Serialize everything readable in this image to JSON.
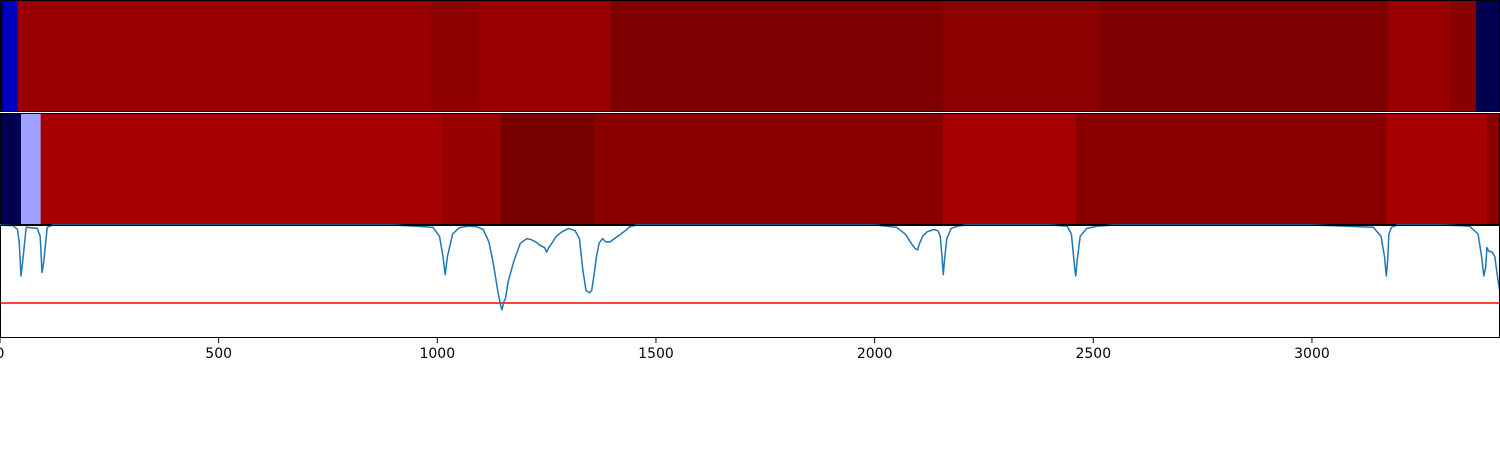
{
  "chart_data": [
    {
      "type": "heatmap",
      "segments": [
        {
          "x0": 0,
          "x1": 8,
          "color": "#00007a"
        },
        {
          "x0": 8,
          "x1": 40,
          "color": "#0000bf"
        },
        {
          "x0": 40,
          "x1": 985,
          "color": "#9a0000"
        },
        {
          "x0": 985,
          "x1": 1095,
          "color": "#8e0000"
        },
        {
          "x0": 1095,
          "x1": 1395,
          "color": "#9a0000"
        },
        {
          "x0": 1395,
          "x1": 2155,
          "color": "#7e0000"
        },
        {
          "x0": 2155,
          "x1": 2515,
          "color": "#8c0000"
        },
        {
          "x0": 2515,
          "x1": 3175,
          "color": "#7e0000"
        },
        {
          "x0": 3175,
          "x1": 3315,
          "color": "#9a0000"
        },
        {
          "x0": 3315,
          "x1": 3375,
          "color": "#880000"
        },
        {
          "x0": 3375,
          "x1": 3430,
          "color": "#00004e"
        }
      ]
    },
    {
      "type": "heatmap",
      "segments": [
        {
          "x0": 0,
          "x1": 48,
          "color": "#00004e"
        },
        {
          "x0": 48,
          "x1": 93,
          "color": "#a0a0ff"
        },
        {
          "x0": 93,
          "x1": 1010,
          "color": "#a60000"
        },
        {
          "x0": 1010,
          "x1": 1145,
          "color": "#980000"
        },
        {
          "x0": 1145,
          "x1": 1360,
          "color": "#7a0000"
        },
        {
          "x0": 1360,
          "x1": 2155,
          "color": "#8a0000"
        },
        {
          "x0": 2155,
          "x1": 2460,
          "color": "#a60000"
        },
        {
          "x0": 2460,
          "x1": 3170,
          "color": "#8a0000"
        },
        {
          "x0": 3170,
          "x1": 3400,
          "color": "#a60000"
        },
        {
          "x0": 3400,
          "x1": 3430,
          "color": "#8a0000"
        }
      ]
    },
    {
      "type": "line",
      "series": [
        {
          "color": "#1f77b4",
          "baseline": 1.0,
          "x": [
            0,
            30,
            40,
            44,
            48,
            52,
            60,
            85,
            92,
            96,
            100,
            108,
            120,
            160,
            300,
            600,
            900,
            990,
            1005,
            1013,
            1018,
            1023,
            1035,
            1050,
            1070,
            1090,
            1105,
            1118,
            1128,
            1138,
            1144,
            1148,
            1152,
            1156,
            1162,
            1175,
            1190,
            1205,
            1215,
            1225,
            1235,
            1245,
            1250,
            1255,
            1262,
            1272,
            1285,
            1300,
            1315,
            1325,
            1333,
            1340,
            1348,
            1353,
            1358,
            1364,
            1370,
            1378,
            1385,
            1395,
            1405,
            1420,
            1430,
            1438,
            1445,
            1455,
            1470,
            1490,
            1600,
            1800,
            2000,
            2050,
            2070,
            2085,
            2093,
            2098,
            2103,
            2110,
            2120,
            2135,
            2145,
            2150,
            2154,
            2157,
            2160,
            2165,
            2175,
            2190,
            2210,
            2250,
            2400,
            2440,
            2450,
            2455,
            2458,
            2460,
            2463,
            2470,
            2485,
            2510,
            2550,
            2700,
            3000,
            3140,
            3158,
            3166,
            3170,
            3173,
            3176,
            3182,
            3195,
            3220,
            3300,
            3360,
            3380,
            3388,
            3393,
            3397,
            3400,
            3404,
            3412,
            3418,
            3424,
            3430
          ],
          "y": [
            1.0,
            0.995,
            0.96,
            0.85,
            0.55,
            0.68,
            0.98,
            0.97,
            0.9,
            0.58,
            0.67,
            0.98,
            1.0,
            1.0,
            1.0,
            1.0,
            1.0,
            0.98,
            0.9,
            0.72,
            0.56,
            0.72,
            0.92,
            0.975,
            0.99,
            0.985,
            0.96,
            0.85,
            0.66,
            0.42,
            0.3,
            0.25,
            0.32,
            0.35,
            0.5,
            0.68,
            0.84,
            0.88,
            0.87,
            0.85,
            0.82,
            0.8,
            0.76,
            0.8,
            0.84,
            0.9,
            0.94,
            0.97,
            0.95,
            0.88,
            0.6,
            0.42,
            0.4,
            0.42,
            0.55,
            0.72,
            0.84,
            0.88,
            0.85,
            0.85,
            0.88,
            0.92,
            0.95,
            0.98,
            0.99,
            1.0,
            1.0,
            1.0,
            1.0,
            1.0,
            1.0,
            0.98,
            0.92,
            0.83,
            0.79,
            0.78,
            0.84,
            0.9,
            0.94,
            0.96,
            0.95,
            0.9,
            0.72,
            0.56,
            0.7,
            0.88,
            0.97,
            0.99,
            1.0,
            1.0,
            1.0,
            0.99,
            0.92,
            0.72,
            0.6,
            0.55,
            0.68,
            0.9,
            0.97,
            0.99,
            1.0,
            1.0,
            1.0,
            0.98,
            0.9,
            0.72,
            0.55,
            0.68,
            0.92,
            0.98,
            1.0,
            1.0,
            1.0,
            0.99,
            0.92,
            0.72,
            0.55,
            0.62,
            0.8,
            0.77,
            0.76,
            0.72,
            0.55,
            0.4
          ]
        }
      ],
      "threshold": {
        "y": 0.31,
        "color": "#ff0000"
      },
      "ylim": [
        0.0,
        1.0
      ],
      "xlim": [
        0,
        3430
      ],
      "xticks": [
        0,
        500,
        1000,
        1500,
        2000,
        2500,
        3000
      ],
      "xtick_labels": [
        "0",
        "500",
        "1000",
        "1500",
        "2000",
        "2500",
        "3000"
      ],
      "title": "",
      "xlabel": "",
      "ylabel": ""
    }
  ]
}
